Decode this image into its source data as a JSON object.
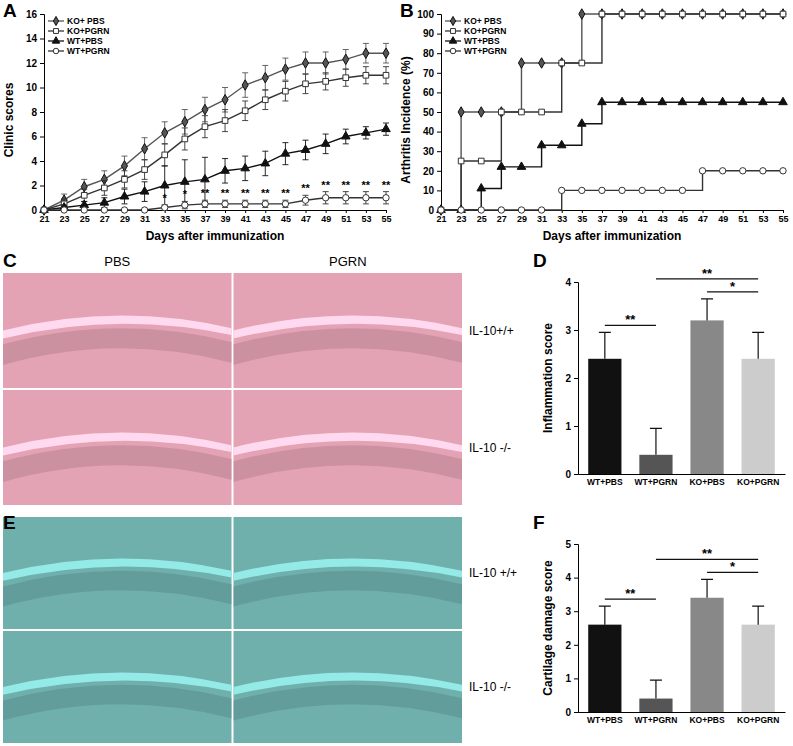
{
  "chart_data": [
    {
      "type": "line",
      "panel_label": "A",
      "x_label": "Days after immunization",
      "y_label": "Clinic scores",
      "x": [
        21,
        23,
        25,
        27,
        29,
        31,
        33,
        35,
        37,
        39,
        41,
        43,
        45,
        47,
        49,
        51,
        53,
        55
      ],
      "xlim": [
        21,
        55
      ],
      "xticks": [
        21,
        23,
        25,
        27,
        29,
        31,
        33,
        35,
        37,
        39,
        41,
        43,
        45,
        47,
        49,
        51,
        53,
        55
      ],
      "ylim": [
        0,
        16
      ],
      "yticks": [
        0,
        2,
        4,
        6,
        8,
        10,
        12,
        14,
        16
      ],
      "legend": "top-left",
      "line_style": "solid",
      "series": [
        {
          "name": "KO+ PBS",
          "color": "#555555",
          "marker": "diamond",
          "values": [
            0,
            0.8,
            1.9,
            2.5,
            3.6,
            5.0,
            6.3,
            7.2,
            8.2,
            9.0,
            10.2,
            10.8,
            11.5,
            12.0,
            12.0,
            12.3,
            12.8,
            12.8
          ],
          "errors": [
            0,
            0.5,
            0.6,
            0.7,
            0.8,
            0.9,
            0.9,
            1.0,
            1.0,
            1.0,
            1.0,
            1.0,
            0.9,
            0.9,
            0.9,
            0.8,
            0.8,
            0.8
          ]
        },
        {
          "name": "KO+PGRN",
          "color": "#333333",
          "marker": "square-open",
          "values": [
            0,
            0.5,
            1.2,
            1.8,
            2.5,
            3.3,
            4.5,
            5.8,
            6.8,
            7.3,
            8.1,
            9.0,
            9.7,
            10.3,
            10.5,
            10.8,
            11.0,
            11.0
          ],
          "errors": [
            0,
            0.4,
            0.5,
            0.6,
            0.7,
            0.8,
            0.9,
            0.9,
            0.9,
            0.9,
            0.8,
            0.8,
            0.8,
            0.8,
            0.7,
            0.7,
            0.7,
            0.7
          ]
        },
        {
          "name": "WT+PBS",
          "color": "#111111",
          "marker": "triangle",
          "values": [
            0,
            0.2,
            0.4,
            0.6,
            1.1,
            1.5,
            2.0,
            2.3,
            2.5,
            3.2,
            3.4,
            3.8,
            4.6,
            4.9,
            5.4,
            6.0,
            6.3,
            6.6
          ],
          "errors": [
            0,
            0.2,
            0.3,
            0.4,
            0.6,
            0.8,
            1.6,
            1.8,
            1.8,
            1.0,
            1.0,
            1.0,
            0.9,
            0.8,
            0.8,
            0.6,
            0.5,
            0.5
          ]
        },
        {
          "name": "WT+PGRN",
          "color": "#333333",
          "marker": "circle-open",
          "values": [
            0,
            0,
            0,
            0,
            0,
            0,
            0.2,
            0.4,
            0.5,
            0.5,
            0.5,
            0.5,
            0.5,
            0.8,
            1.0,
            1.0,
            1.0,
            1.0
          ],
          "errors": [
            0,
            0,
            0,
            0,
            0,
            0,
            0.2,
            0.3,
            0.3,
            0.3,
            0.3,
            0.3,
            0.3,
            0.4,
            0.5,
            0.5,
            0.5,
            0.5
          ]
        }
      ],
      "annotations": [
        {
          "text": "*",
          "x": 33,
          "series": "WT+PGRN"
        },
        {
          "text": "*",
          "x": 35,
          "series": "WT+PGRN"
        },
        {
          "text": "**",
          "x": 37,
          "series": "WT+PGRN"
        },
        {
          "text": "**",
          "x": 39,
          "series": "WT+PGRN"
        },
        {
          "text": "**",
          "x": 41,
          "series": "WT+PGRN"
        },
        {
          "text": "**",
          "x": 43,
          "series": "WT+PGRN"
        },
        {
          "text": "**",
          "x": 45,
          "series": "WT+PGRN"
        },
        {
          "text": "**",
          "x": 47,
          "series": "WT+PGRN"
        },
        {
          "text": "**",
          "x": 49,
          "series": "WT+PGRN"
        },
        {
          "text": "**",
          "x": 51,
          "series": "WT+PGRN"
        },
        {
          "text": "**",
          "x": 53,
          "series": "WT+PGRN"
        },
        {
          "text": "**",
          "x": 55,
          "series": "WT+PGRN"
        }
      ]
    },
    {
      "type": "line",
      "panel_label": "B",
      "x_label": "Days after immunization",
      "y_label": "Arthritis Incidence (%)",
      "x": [
        21,
        23,
        25,
        27,
        29,
        31,
        33,
        35,
        37,
        39,
        41,
        43,
        45,
        47,
        49,
        51,
        53,
        55
      ],
      "xlim": [
        21,
        55
      ],
      "xticks": [
        21,
        23,
        25,
        27,
        29,
        31,
        33,
        35,
        37,
        39,
        41,
        43,
        45,
        47,
        49,
        51,
        53,
        55
      ],
      "ylim": [
        0,
        100
      ],
      "yticks": [
        0,
        10,
        20,
        30,
        40,
        50,
        60,
        70,
        80,
        90,
        100
      ],
      "legend": "top-left",
      "line_style": "step",
      "series": [
        {
          "name": "KO+ PBS",
          "color": "#555555",
          "marker": "diamond",
          "values": [
            0,
            50,
            50,
            50,
            75,
            75,
            75,
            100,
            100,
            100,
            100,
            100,
            100,
            100,
            100,
            100,
            100,
            100
          ]
        },
        {
          "name": "KO+PGRN",
          "color": "#333333",
          "marker": "square-open",
          "values": [
            0,
            25,
            25,
            50,
            50,
            50,
            75,
            75,
            100,
            100,
            100,
            100,
            100,
            100,
            100,
            100,
            100,
            100
          ]
        },
        {
          "name": "WT+PBS",
          "color": "#111111",
          "marker": "triangle",
          "values": [
            0,
            0,
            11,
            22,
            22,
            33,
            33,
            44,
            55,
            55,
            55,
            55,
            55,
            55,
            55,
            55,
            55,
            55
          ]
        },
        {
          "name": "WT+PGRN",
          "color": "#333333",
          "marker": "circle-open",
          "values": [
            0,
            0,
            0,
            0,
            0,
            0,
            10,
            10,
            10,
            10,
            10,
            10,
            10,
            20,
            20,
            20,
            20,
            20
          ]
        }
      ]
    },
    {
      "type": "image",
      "panel_label": "C",
      "color": "#e4a3b4",
      "column_labels": [
        "PBS",
        "PGRN"
      ],
      "row_labels": [
        "IL-10+/+",
        "IL-10 -/-"
      ]
    },
    {
      "type": "bar",
      "panel_label": "D",
      "y_label": "Inflammation score",
      "categories": [
        "WT+PBS",
        "WT+PGRN",
        "KO+PBS",
        "KO+PGRN"
      ],
      "values": [
        2.4,
        0.4,
        3.2,
        2.4
      ],
      "errors": [
        0.55,
        0.55,
        0.45,
        0.55
      ],
      "colors": [
        "#111111",
        "#555555",
        "#888888",
        "#cccccc"
      ],
      "ylim": [
        0,
        4
      ],
      "yticks": [
        0,
        1,
        2,
        3,
        4
      ],
      "annotations": [
        {
          "text": "**",
          "between": [
            "WT+PBS",
            "WT+PGRN"
          ]
        },
        {
          "text": "*",
          "between": [
            "KO+PBS",
            "KO+PGRN"
          ]
        },
        {
          "text": "**",
          "between": [
            "WT+PGRN",
            "KO+PGRN"
          ]
        }
      ]
    },
    {
      "type": "image",
      "panel_label": "E",
      "color": "#6fb0ad",
      "row_labels": [
        "IL-10 +/+",
        "IL-10 -/-"
      ]
    },
    {
      "type": "bar",
      "panel_label": "F",
      "y_label": "Cartilage damage score",
      "categories": [
        "WT+PBS",
        "WT+PGRN",
        "KO+PBS",
        "KO+PGRN"
      ],
      "values": [
        2.6,
        0.4,
        3.4,
        2.6
      ],
      "errors": [
        0.55,
        0.55,
        0.55,
        0.55
      ],
      "colors": [
        "#111111",
        "#555555",
        "#888888",
        "#cccccc"
      ],
      "ylim": [
        0,
        5
      ],
      "yticks": [
        0,
        1,
        2,
        3,
        4,
        5
      ],
      "annotations": [
        {
          "text": "**",
          "between": [
            "WT+PBS",
            "WT+PGRN"
          ]
        },
        {
          "text": "*",
          "between": [
            "KO+PBS",
            "KO+PGRN"
          ]
        },
        {
          "text": "**",
          "between": [
            "WT+PGRN",
            "KO+PGRN"
          ]
        }
      ]
    }
  ]
}
